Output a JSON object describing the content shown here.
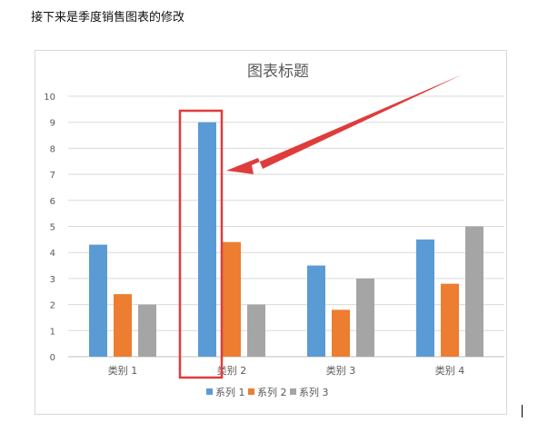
{
  "intro_text": "接下来是季度销售图表的修改",
  "chart_data": {
    "type": "bar",
    "title": "图表标题",
    "xlabel": "",
    "ylabel": "",
    "categories": [
      "类别 1",
      "类别 2",
      "类别 3",
      "类别 4"
    ],
    "series": [
      {
        "name": "系列 1",
        "values": [
          4.3,
          9,
          3.5,
          4.5
        ],
        "color": "#5b9bd5"
      },
      {
        "name": "系列 2",
        "values": [
          2.4,
          4.4,
          1.8,
          2.8
        ],
        "color": "#ed7d31"
      },
      {
        "name": "系列 3",
        "values": [
          2,
          2,
          3,
          5
        ],
        "color": "#a5a5a5"
      }
    ],
    "ylim": [
      0,
      10
    ],
    "yticks": [
      0,
      1,
      2,
      3,
      4,
      5,
      6,
      7,
      8,
      9,
      10
    ],
    "grid": true,
    "legend_position": "bottom"
  },
  "annotation": {
    "highlight_color": "#e03c3c",
    "highlight_category": "类别 2"
  }
}
